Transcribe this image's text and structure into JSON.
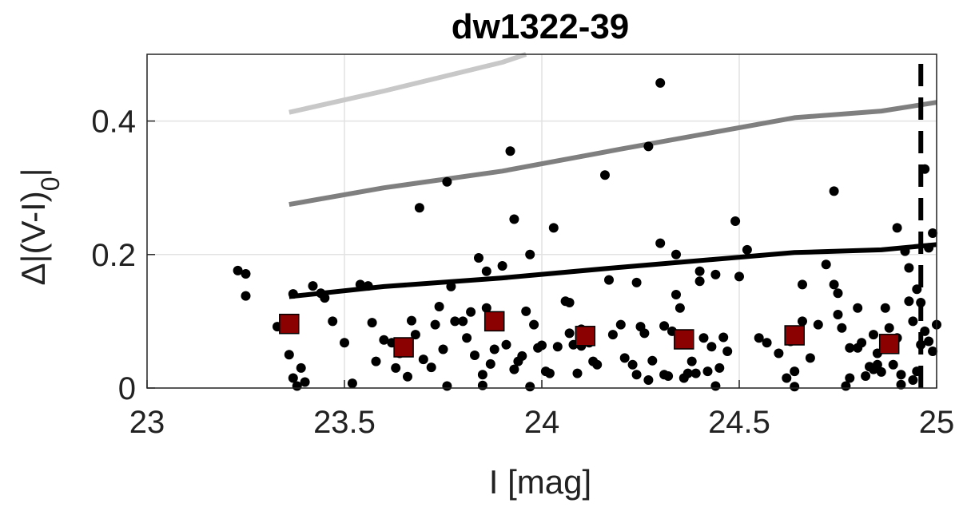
{
  "chart_data": {
    "type": "scatter",
    "title": "dw1322-39",
    "xlabel": "I [mag]",
    "ylabel_prefix": "Δ|(V-I)",
    "ylabel_subscript": "0",
    "ylabel_suffix": "|",
    "xlim": [
      23,
      25
    ],
    "ylim": [
      0,
      0.5
    ],
    "x_ticks": [
      23,
      23.5,
      24,
      24.5,
      25
    ],
    "x_tick_labels": [
      "23",
      "23.5",
      "24",
      "24.5",
      "25"
    ],
    "y_ticks": [
      0,
      0.2,
      0.4
    ],
    "y_tick_labels": [
      "0",
      "0.2",
      "0.4"
    ],
    "grid": true,
    "cutoff_line_x": 24.96,
    "curves": [
      {
        "color": "#c8c8c8",
        "points": [
          [
            23.36,
            0.413
          ],
          [
            23.6,
            0.445
          ],
          [
            23.9,
            0.488
          ],
          [
            23.96,
            0.5
          ]
        ]
      },
      {
        "color": "#7f7f7f",
        "points": [
          [
            23.36,
            0.275
          ],
          [
            23.6,
            0.3
          ],
          [
            23.9,
            0.325
          ],
          [
            24.2,
            0.358
          ],
          [
            24.64,
            0.405
          ],
          [
            24.86,
            0.415
          ],
          [
            25.0,
            0.428
          ]
        ]
      },
      {
        "color": "#000000",
        "points": [
          [
            23.36,
            0.137
          ],
          [
            23.6,
            0.152
          ],
          [
            23.9,
            0.165
          ],
          [
            24.2,
            0.181
          ],
          [
            24.64,
            0.203
          ],
          [
            24.86,
            0.207
          ],
          [
            25.0,
            0.215
          ]
        ]
      }
    ],
    "binned_medians": {
      "color": "#8b0000",
      "x": [
        23.36,
        23.65,
        23.88,
        24.11,
        24.36,
        24.64,
        24.88
      ],
      "y": [
        0.096,
        0.061,
        0.1,
        0.078,
        0.073,
        0.079,
        0.066
      ]
    },
    "scatter": {
      "color": "#000000",
      "points": [
        [
          23.23,
          0.176
        ],
        [
          23.25,
          0.171
        ],
        [
          23.25,
          0.138
        ],
        [
          23.33,
          0.092
        ],
        [
          23.36,
          0.05
        ],
        [
          23.37,
          0.015
        ],
        [
          23.38,
          0.003
        ],
        [
          23.39,
          0.03
        ],
        [
          23.4,
          0.009
        ],
        [
          23.37,
          0.141
        ],
        [
          23.42,
          0.153
        ],
        [
          23.44,
          0.142
        ],
        [
          23.45,
          0.135
        ],
        [
          23.47,
          0.1
        ],
        [
          23.5,
          0.068
        ],
        [
          23.52,
          0.007
        ],
        [
          23.54,
          0.155
        ],
        [
          23.56,
          0.153
        ],
        [
          23.57,
          0.098
        ],
        [
          23.58,
          0.04
        ],
        [
          23.6,
          0.072
        ],
        [
          23.62,
          0.068
        ],
        [
          23.63,
          0.03
        ],
        [
          23.64,
          0.052
        ],
        [
          23.66,
          0.017
        ],
        [
          23.67,
          0.101
        ],
        [
          23.68,
          0.08
        ],
        [
          23.69,
          0.27
        ],
        [
          23.7,
          0.043
        ],
        [
          23.72,
          0.031
        ],
        [
          23.73,
          0.095
        ],
        [
          23.74,
          0.122
        ],
        [
          23.75,
          0.058
        ],
        [
          23.76,
          0.309
        ],
        [
          23.76,
          0.003
        ],
        [
          23.77,
          0.152
        ],
        [
          23.78,
          0.1
        ],
        [
          23.8,
          0.1
        ],
        [
          23.81,
          0.075
        ],
        [
          23.82,
          0.114
        ],
        [
          23.83,
          0.049
        ],
        [
          23.84,
          0.195
        ],
        [
          23.85,
          0.004
        ],
        [
          23.85,
          0.02
        ],
        [
          23.86,
          0.175
        ],
        [
          23.86,
          0.12
        ],
        [
          23.87,
          0.036
        ],
        [
          23.88,
          0.058
        ],
        [
          23.9,
          0.183
        ],
        [
          23.91,
          0.065
        ],
        [
          23.92,
          0.355
        ],
        [
          23.93,
          0.253
        ],
        [
          23.93,
          0.028
        ],
        [
          23.94,
          0.04
        ],
        [
          23.95,
          0.048
        ],
        [
          23.96,
          0.115
        ],
        [
          23.97,
          0.002
        ],
        [
          23.97,
          0.2
        ],
        [
          23.98,
          0.095
        ],
        [
          23.99,
          0.06
        ],
        [
          24.0,
          0.064
        ],
        [
          24.01,
          0.025
        ],
        [
          24.02,
          0.022
        ],
        [
          24.03,
          0.24
        ],
        [
          24.04,
          0.062
        ],
        [
          24.06,
          0.13
        ],
        [
          24.07,
          0.128
        ],
        [
          24.07,
          0.082
        ],
        [
          24.08,
          0.065
        ],
        [
          24.09,
          0.022
        ],
        [
          24.1,
          0.063
        ],
        [
          24.1,
          0.088
        ],
        [
          24.12,
          0.068
        ],
        [
          24.13,
          0.04
        ],
        [
          24.14,
          0.035
        ],
        [
          24.16,
          0.319
        ],
        [
          24.17,
          0.162
        ],
        [
          24.18,
          0.08
        ],
        [
          24.2,
          0.095
        ],
        [
          24.21,
          0.045
        ],
        [
          24.23,
          0.035
        ],
        [
          24.24,
          0.158
        ],
        [
          24.24,
          0.02
        ],
        [
          24.25,
          0.092
        ],
        [
          24.26,
          0.082
        ],
        [
          24.27,
          0.362
        ],
        [
          24.27,
          0.012
        ],
        [
          24.28,
          0.041
        ],
        [
          24.3,
          0.217
        ],
        [
          24.3,
          0.457
        ],
        [
          24.31,
          0.093
        ],
        [
          24.31,
          0.02
        ],
        [
          24.32,
          0.018
        ],
        [
          24.33,
          0.085
        ],
        [
          24.34,
          0.14
        ],
        [
          24.34,
          0.2
        ],
        [
          24.35,
          0.12
        ],
        [
          24.36,
          0.015
        ],
        [
          24.37,
          0.022
        ],
        [
          24.38,
          0.04
        ],
        [
          24.39,
          0.022
        ],
        [
          24.4,
          0.175
        ],
        [
          24.4,
          0.16
        ],
        [
          24.41,
          0.075
        ],
        [
          24.42,
          0.025
        ],
        [
          24.43,
          0.062
        ],
        [
          24.44,
          0.17
        ],
        [
          24.44,
          0.003
        ],
        [
          24.45,
          0.03
        ],
        [
          24.46,
          0.076
        ],
        [
          24.47,
          0.055
        ],
        [
          24.49,
          0.25
        ],
        [
          24.5,
          0.167
        ],
        [
          24.52,
          0.207
        ],
        [
          24.55,
          0.075
        ],
        [
          24.57,
          0.068
        ],
        [
          24.6,
          0.052
        ],
        [
          24.62,
          0.015
        ],
        [
          24.63,
          0.07
        ],
        [
          24.64,
          0.002
        ],
        [
          24.64,
          0.025
        ],
        [
          24.66,
          0.155
        ],
        [
          24.66,
          0.1
        ],
        [
          24.68,
          0.045
        ],
        [
          24.7,
          0.095
        ],
        [
          24.72,
          0.185
        ],
        [
          24.74,
          0.295
        ],
        [
          24.74,
          0.155
        ],
        [
          24.75,
          0.142
        ],
        [
          24.75,
          0.11
        ],
        [
          24.76,
          0.09
        ],
        [
          24.77,
          0.003
        ],
        [
          24.78,
          0.06
        ],
        [
          24.78,
          0.015
        ],
        [
          24.8,
          0.12
        ],
        [
          24.8,
          0.06
        ],
        [
          24.81,
          0.068
        ],
        [
          24.82,
          0.018
        ],
        [
          24.83,
          0.032
        ],
        [
          24.84,
          0.028
        ],
        [
          24.84,
          0.08
        ],
        [
          24.85,
          0.035
        ],
        [
          24.85,
          0.052
        ],
        [
          24.86,
          0.024
        ],
        [
          24.87,
          0.12
        ],
        [
          24.88,
          0.09
        ],
        [
          24.89,
          0.035
        ],
        [
          24.89,
          0.065
        ],
        [
          24.9,
          0.24
        ],
        [
          24.9,
          0.075
        ],
        [
          24.91,
          0.02
        ],
        [
          24.91,
          0.005
        ],
        [
          24.92,
          0.205
        ],
        [
          24.93,
          0.18
        ],
        [
          24.93,
          0.13
        ],
        [
          24.94,
          0.1
        ],
        [
          24.94,
          0.012
        ],
        [
          24.95,
          0.025
        ],
        [
          24.95,
          0.148
        ],
        [
          24.96,
          0.128
        ],
        [
          24.97,
          0.328
        ],
        [
          24.98,
          0.21
        ],
        [
          24.98,
          0.07
        ],
        [
          24.99,
          0.232
        ],
        [
          25.0,
          0.095
        ],
        [
          24.99,
          0.055
        ],
        [
          24.97,
          0.085
        ],
        [
          24.96,
          0.065
        ]
      ]
    }
  }
}
